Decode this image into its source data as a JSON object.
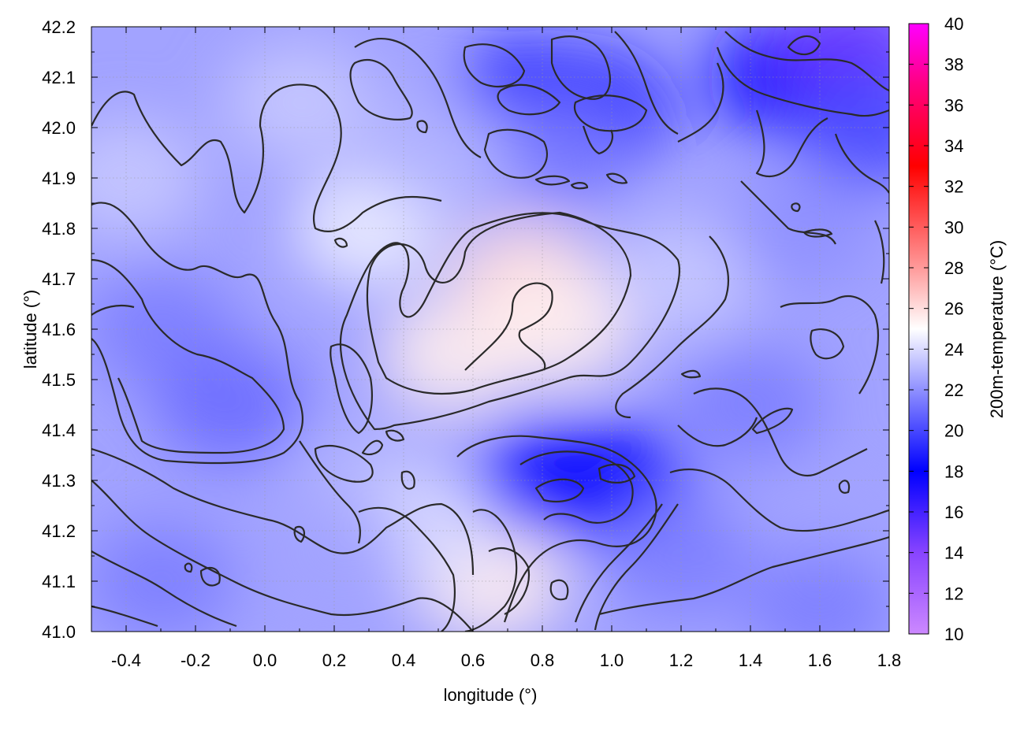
{
  "chart_data": {
    "type": "heatmap",
    "title": "",
    "xlabel": "longitude (°)",
    "ylabel": "latitude (°)",
    "colorbar_label": "200m-temperature (°C)",
    "xlim": [
      -0.5,
      1.8
    ],
    "ylim": [
      41.0,
      42.2
    ],
    "x_ticks": [
      "-0.4",
      "-0.2",
      "0.0",
      "0.2",
      "0.4",
      "0.6",
      "0.8",
      "1.0",
      "1.2",
      "1.4",
      "1.6",
      "1.8"
    ],
    "y_ticks": [
      "41.0",
      "41.1",
      "41.2",
      "41.3",
      "41.4",
      "41.5",
      "41.6",
      "41.7",
      "41.8",
      "41.9",
      "42.0",
      "42.1",
      "42.2"
    ],
    "colorbar_range": [
      10,
      40
    ],
    "colorbar_ticks": [
      "10",
      "12",
      "14",
      "16",
      "18",
      "20",
      "22",
      "24",
      "26",
      "28",
      "30",
      "32",
      "34",
      "36",
      "38",
      "40"
    ],
    "colorbar_stops": [
      {
        "value": 10,
        "color": "#cc88ff"
      },
      {
        "value": 14,
        "color": "#8844ff"
      },
      {
        "value": 18,
        "color": "#0000ff"
      },
      {
        "value": 22,
        "color": "#8f90ff"
      },
      {
        "value": 25,
        "color": "#ffffff"
      },
      {
        "value": 28,
        "color": "#ff9a9a"
      },
      {
        "value": 33,
        "color": "#ff0000"
      },
      {
        "value": 37,
        "color": "#ff0080"
      },
      {
        "value": 40,
        "color": "#ff00ff"
      }
    ],
    "contour_interval": 2,
    "grid": true,
    "field_samples": [
      {
        "lon": -0.4,
        "lat": 41.9,
        "temp": 23.5
      },
      {
        "lon": -0.3,
        "lat": 41.6,
        "temp": 21.5
      },
      {
        "lon": -0.1,
        "lat": 41.45,
        "temp": 21.0
      },
      {
        "lon": -0.3,
        "lat": 41.1,
        "temp": 21.5
      },
      {
        "lon": 0.1,
        "lat": 42.05,
        "temp": 23.5
      },
      {
        "lon": 0.3,
        "lat": 41.8,
        "temp": 24.5
      },
      {
        "lon": 0.55,
        "lat": 41.55,
        "temp": 25.5
      },
      {
        "lon": 0.75,
        "lat": 41.7,
        "temp": 26.0
      },
      {
        "lon": 0.85,
        "lat": 41.6,
        "temp": 25.5
      },
      {
        "lon": 0.65,
        "lat": 41.1,
        "temp": 25.5
      },
      {
        "lon": 0.75,
        "lat": 42.05,
        "temp": 18.5
      },
      {
        "lon": 0.95,
        "lat": 42.03,
        "temp": 17.5
      },
      {
        "lon": 0.85,
        "lat": 41.95,
        "temp": 21.5
      },
      {
        "lon": 1.0,
        "lat": 41.3,
        "temp": 18.5
      },
      {
        "lon": 0.82,
        "lat": 41.3,
        "temp": 18.5
      },
      {
        "lon": 1.2,
        "lat": 41.15,
        "temp": 21.5
      },
      {
        "lon": 1.2,
        "lat": 41.7,
        "temp": 23.5
      },
      {
        "lon": 1.4,
        "lat": 41.45,
        "temp": 21.5
      },
      {
        "lon": 1.6,
        "lat": 41.2,
        "temp": 22.5
      },
      {
        "lon": 1.6,
        "lat": 41.05,
        "temp": 21.5
      },
      {
        "lon": 1.55,
        "lat": 41.8,
        "temp": 22.0
      },
      {
        "lon": 1.5,
        "lat": 42.1,
        "temp": 17.5
      },
      {
        "lon": 1.7,
        "lat": 42.15,
        "temp": 15.0
      },
      {
        "lon": 1.75,
        "lat": 42.0,
        "temp": 20.0
      },
      {
        "lon": 0.3,
        "lat": 41.3,
        "temp": 23.0
      },
      {
        "lon": 0.45,
        "lat": 41.2,
        "temp": 24.0
      },
      {
        "lon": 0.2,
        "lat": 41.15,
        "temp": 22.5
      },
      {
        "lon": 0.5,
        "lat": 41.95,
        "temp": 23.0
      }
    ]
  }
}
